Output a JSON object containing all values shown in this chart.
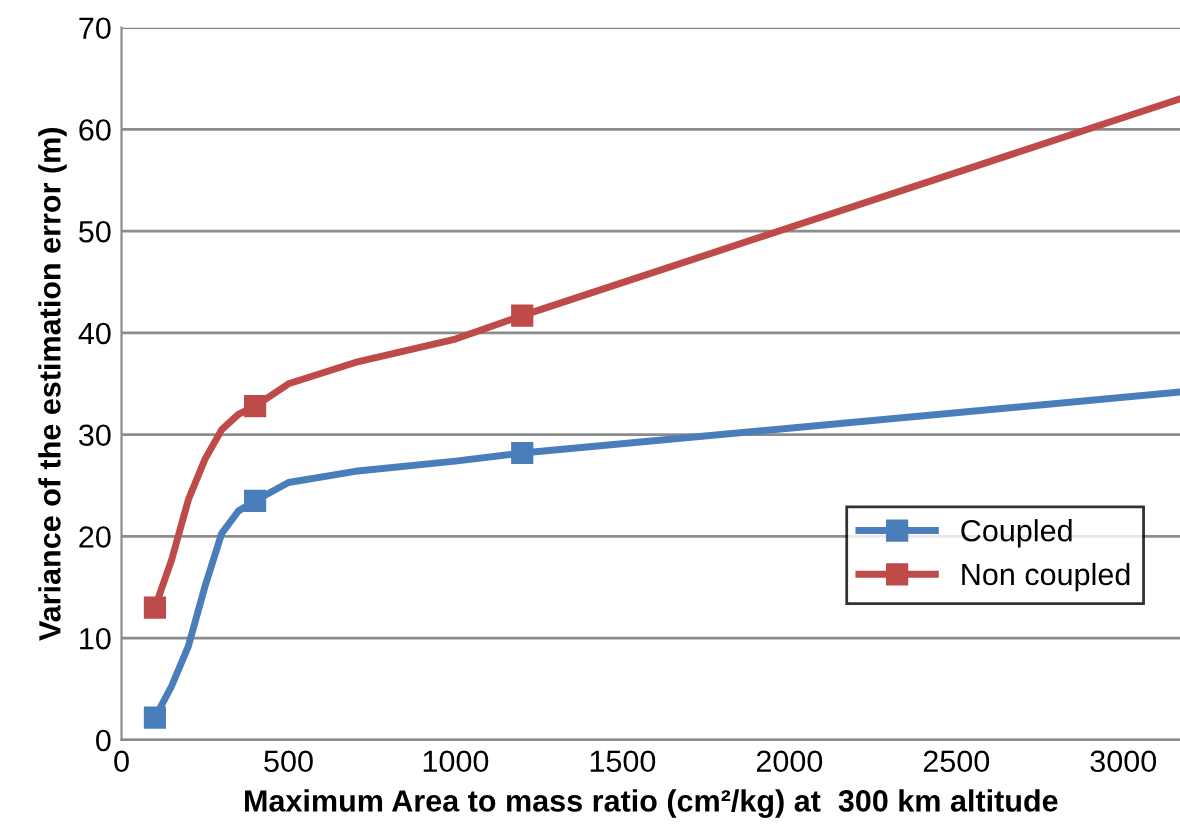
{
  "chart_data": {
    "type": "line",
    "xlabel": "Maximum Area to mass ratio (cm²/kg) at  300 km altitude",
    "ylabel": "Variance of the estimation error (m)",
    "series": [
      {
        "name": "Coupled",
        "color": "#4a7ebb",
        "x": [
          100,
          150,
          200,
          250,
          300,
          350,
          400,
          500,
          700,
          1000,
          1200,
          3170
        ],
        "values": [
          2.2,
          5.3,
          9.2,
          15.1,
          20.3,
          22.5,
          23.5,
          25.3,
          26.4,
          27.4,
          28.2,
          34.2
        ],
        "marker": "none"
      },
      {
        "name": "Non coupled",
        "color": "#be4b48",
        "x": [
          100,
          150,
          200,
          250,
          300,
          350,
          400,
          500,
          700,
          1000,
          1200,
          3170
        ],
        "values": [
          13.0,
          17.7,
          23.6,
          27.6,
          30.5,
          32.0,
          32.8,
          35.0,
          37.1,
          39.4,
          41.7,
          63.0
        ],
        "marker": "none"
      },
      {
        "type": "scatter",
        "color": "#4a7ebb",
        "x": [
          100,
          400,
          1200
        ],
        "values": [
          2.2,
          23.5,
          28.2
        ],
        "marker": "square"
      },
      {
        "type": "scatter",
        "color": "#be4b48",
        "x": [
          100,
          400,
          1200
        ],
        "values": [
          13.0,
          32.8,
          41.7
        ],
        "marker": "square"
      }
    ],
    "xlim": [
      0,
      3170
    ],
    "xticks": [
      0,
      500,
      1000,
      1500,
      2000,
      2500,
      3000
    ],
    "ylim": [
      0,
      70
    ],
    "yticks": [
      0,
      10,
      20,
      30,
      40,
      50,
      60,
      70
    ],
    "grid": "y",
    "legend": "lower right",
    "line_style": "solid"
  }
}
